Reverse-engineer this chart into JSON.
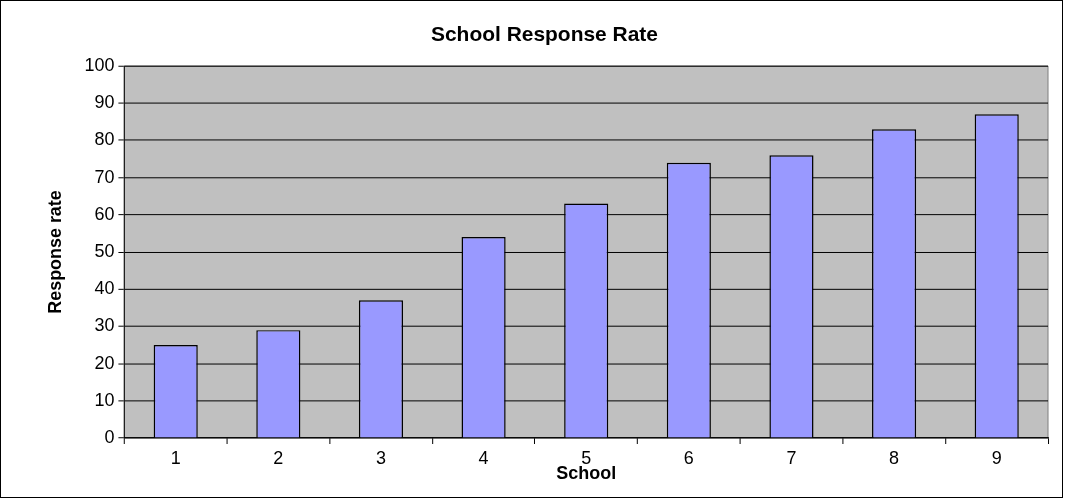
{
  "chart_data": {
    "type": "bar",
    "title": "School Response Rate",
    "xlabel": "School",
    "ylabel": "Response rate",
    "categories": [
      "1",
      "2",
      "3",
      "4",
      "5",
      "6",
      "7",
      "8",
      "9"
    ],
    "values": [
      25,
      29,
      37,
      54,
      63,
      74,
      76,
      83,
      87
    ],
    "color": "#9999ff",
    "ylim": [
      0,
      100
    ],
    "yticks": [
      0,
      10,
      20,
      30,
      40,
      50,
      60,
      70,
      80,
      90,
      100
    ],
    "grid": "y",
    "legend": false
  }
}
